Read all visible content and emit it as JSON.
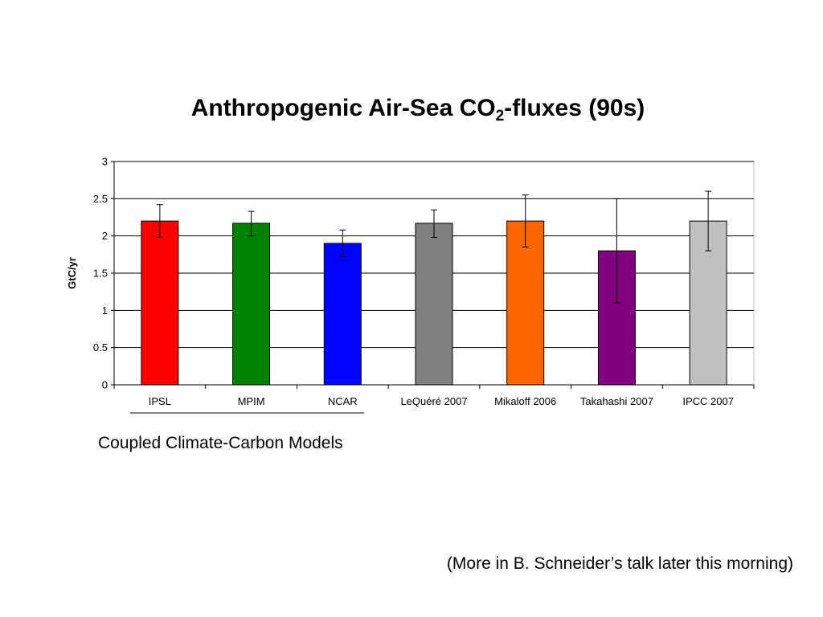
{
  "slide": {
    "title_main": "Anthropogenic Air-Sea CO",
    "title_sub": "2",
    "title_tail": "-fluxes (90s)",
    "group_caption": "Coupled Climate-Carbon Models",
    "footnote": "(More in B. Schneider’s talk later this morning)"
  },
  "chart_data": {
    "type": "bar",
    "title": "Anthropogenic Air-Sea CO2-fluxes (90s)",
    "xlabel": "",
    "ylabel": "GtC/yr",
    "ylim": [
      0,
      3
    ],
    "yticks": [
      0,
      0.5,
      1,
      1.5,
      2,
      2.5,
      3
    ],
    "ytick_labels": [
      "0",
      "0.5",
      "1",
      "1.5",
      "2",
      "2.5",
      "3"
    ],
    "grid": true,
    "legend": "none",
    "categories": [
      "IPSL",
      "MPIM",
      "NCAR",
      "LeQuéré 2007",
      "Mikaloff 2006",
      "Takahashi 2007",
      "IPCC 2007"
    ],
    "values": [
      2.2,
      2.17,
      1.9,
      2.17,
      2.2,
      1.8,
      2.2
    ],
    "error_low": [
      1.98,
      2.0,
      1.72,
      1.98,
      1.85,
      1.1,
      1.8
    ],
    "error_high": [
      2.42,
      2.33,
      2.08,
      2.35,
      2.55,
      2.5,
      2.6
    ],
    "colors": [
      "#ff0000",
      "#008000",
      "#0000ff",
      "#808080",
      "#ff6600",
      "#800080",
      "#c0c0c0"
    ],
    "grouped_categories": [
      "IPSL",
      "MPIM",
      "NCAR"
    ]
  }
}
